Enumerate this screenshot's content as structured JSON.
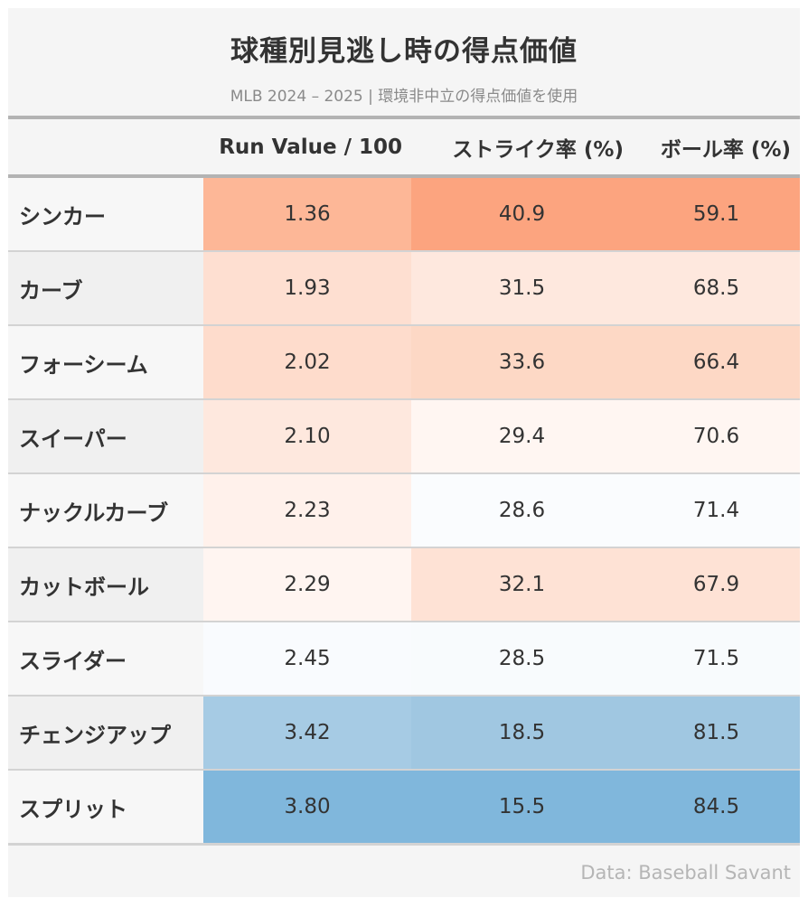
{
  "title": "球種別見逃し時の得点価値",
  "subtitle": "MLB 2024 – 2025 | 環境非中立の得点価値を使用",
  "footer": "Data: Baseball Savant",
  "chart_data": {
    "type": "table",
    "columns": [
      "",
      "Run Value / 100",
      "ストライク率 (%)",
      "ボール率 (%)"
    ],
    "rows": [
      {
        "pitch": "シンカー",
        "values": [
          "1.36",
          "40.9",
          "59.1"
        ],
        "colors": [
          "#fdb797",
          "#fca47f",
          "#fca47f"
        ],
        "stub_bg": "#f7f7f7"
      },
      {
        "pitch": "カーブ",
        "values": [
          "1.93",
          "31.5",
          "68.5"
        ],
        "colors": [
          "#fedfd1",
          "#fee8de",
          "#fee8de"
        ],
        "stub_bg": "#f0f0f0"
      },
      {
        "pitch": "フォーシーム",
        "values": [
          "2.02",
          "33.6",
          "66.4"
        ],
        "colors": [
          "#fedccc",
          "#fdd8c5",
          "#fdd8c5"
        ],
        "stub_bg": "#f7f7f7"
      },
      {
        "pitch": "スイーパー",
        "values": [
          "2.10",
          "29.4",
          "70.6"
        ],
        "colors": [
          "#fee8de",
          "#fff6f2",
          "#fff6f2"
        ],
        "stub_bg": "#f0f0f0"
      },
      {
        "pitch": "ナックルカーブ",
        "values": [
          "2.23",
          "28.6",
          "71.4"
        ],
        "colors": [
          "#fff1eb",
          "#fafcfe",
          "#fafcfe"
        ],
        "stub_bg": "#f7f7f7"
      },
      {
        "pitch": "カットボール",
        "values": [
          "2.29",
          "32.1",
          "67.9"
        ],
        "colors": [
          "#fff5f1",
          "#fee2d5",
          "#fee2d5"
        ],
        "stub_bg": "#f0f0f0"
      },
      {
        "pitch": "スライダー",
        "values": [
          "2.45",
          "28.5",
          "71.5"
        ],
        "colors": [
          "#f9fbfe",
          "#f8fbfd",
          "#f8fbfd"
        ],
        "stub_bg": "#f7f7f7"
      },
      {
        "pitch": "チェンジアップ",
        "values": [
          "3.42",
          "18.5",
          "81.5"
        ],
        "colors": [
          "#a6cbe4",
          "#a0c7e1",
          "#a0c7e1"
        ],
        "stub_bg": "#f0f0f0"
      },
      {
        "pitch": "スプリット",
        "values": [
          "3.80",
          "15.5",
          "84.5"
        ],
        "colors": [
          "#80b7dc",
          "#80b7dc",
          "#80b7dc"
        ],
        "stub_bg": "#f7f7f7"
      }
    ]
  }
}
